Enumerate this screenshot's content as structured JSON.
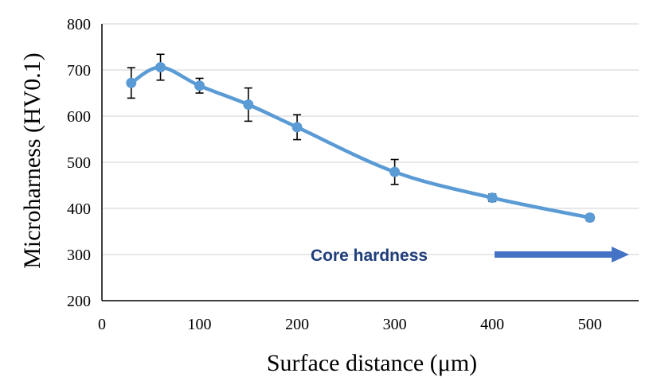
{
  "chart_data": {
    "type": "line",
    "title": "",
    "xlabel": "Surface distance (μm)",
    "ylabel": "Microharness (HV0.1)",
    "xlim": [
      0,
      550
    ],
    "ylim": [
      200,
      800
    ],
    "x_ticks": [
      0,
      100,
      200,
      300,
      400,
      500
    ],
    "y_ticks": [
      200,
      300,
      400,
      500,
      600,
      700,
      800
    ],
    "x_tick_labels": [
      "0",
      "100",
      "200",
      "300",
      "400",
      "500"
    ],
    "y_tick_labels": [
      "200",
      "300",
      "400",
      "500",
      "600",
      "700",
      "800"
    ],
    "grid": "horizontal",
    "legend": "none",
    "series": [
      {
        "x": [
          30,
          60,
          100,
          150,
          200,
          300,
          400,
          500
        ],
        "y": [
          672,
          706,
          666,
          625,
          576,
          479,
          423,
          380
        ],
        "error": [
          33,
          28,
          16,
          36,
          27,
          27,
          8,
          7
        ],
        "color": "#5b9bd5",
        "smooth": true
      }
    ],
    "annotations": [
      {
        "text": "Core hardness",
        "color": "#1f3d7a",
        "arrow_color": "#4472c4",
        "arrow_direction": "right"
      }
    ]
  }
}
